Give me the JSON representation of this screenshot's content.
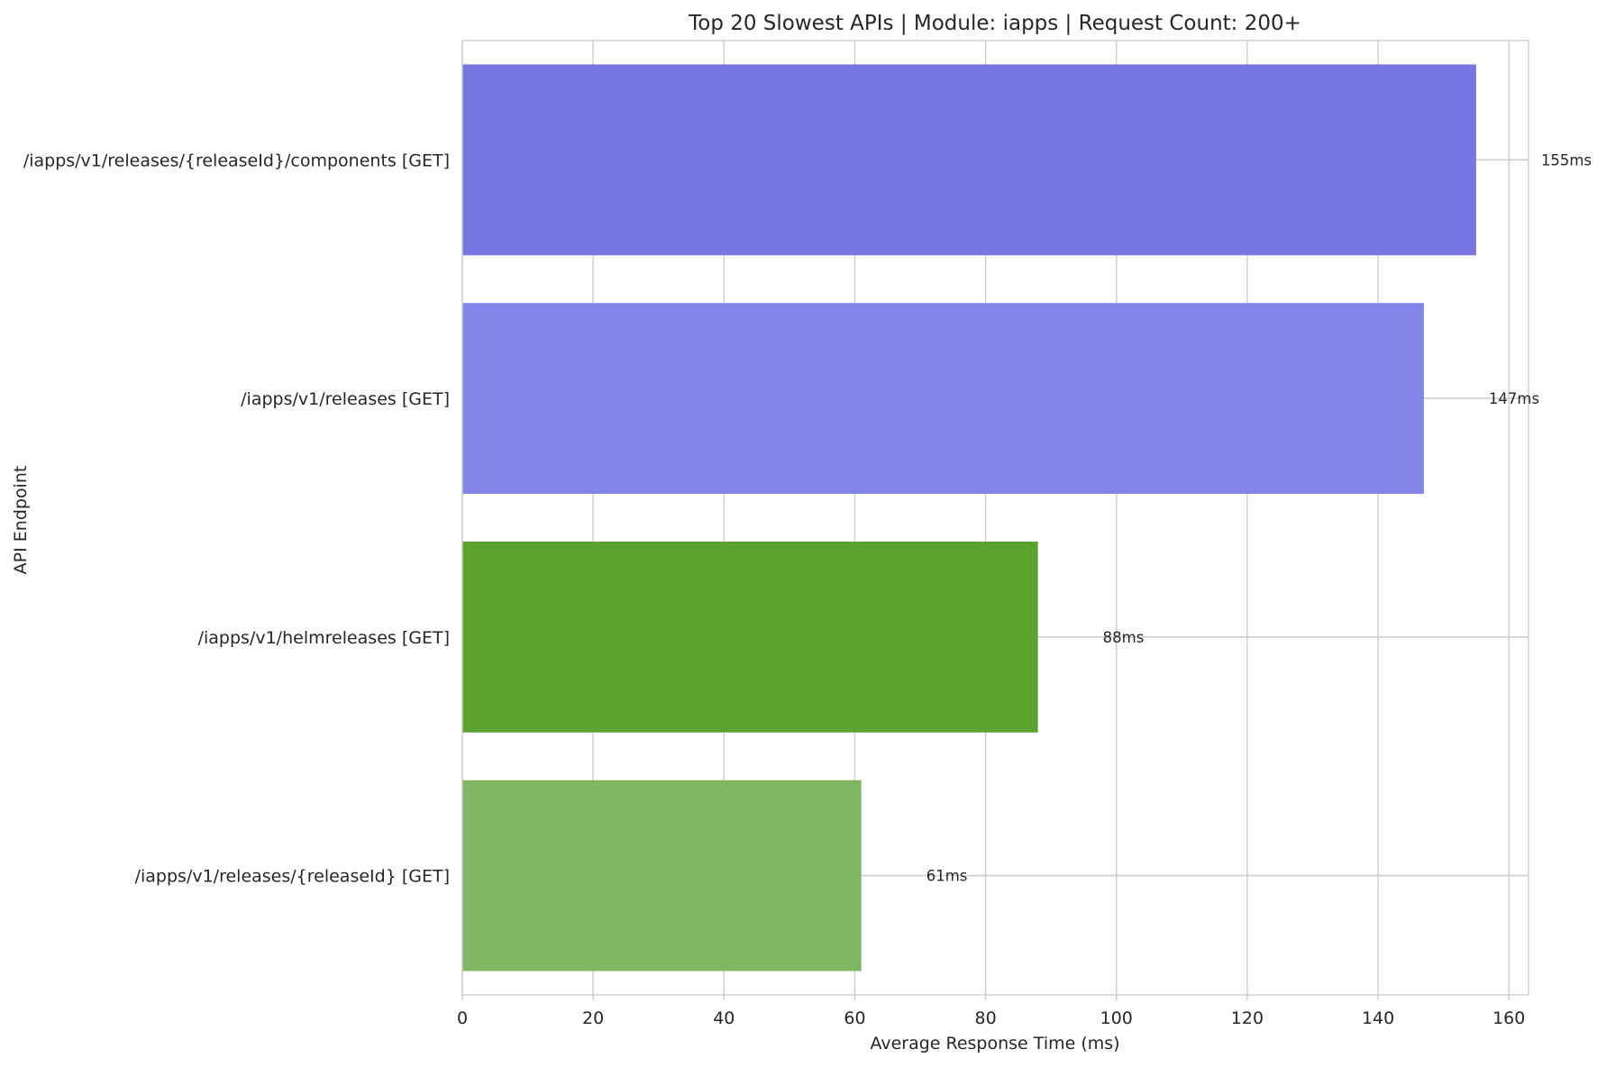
{
  "chart_data": {
    "type": "bar",
    "orientation": "horizontal",
    "title": "Top 20 Slowest APIs | Module: iapps | Request Count: 200+",
    "xlabel": "Average Response Time (ms)",
    "ylabel": "API Endpoint",
    "xlim": [
      0,
      163
    ],
    "xticks": [
      0,
      20,
      40,
      60,
      80,
      100,
      120,
      140,
      160
    ],
    "grid": true,
    "categories": [
      "/iapps/v1/releases/{releaseId}/components [GET]",
      "/iapps/v1/releases [GET]",
      "/iapps/v1/helmreleases [GET]",
      "/iapps/v1/releases/{releaseId} [GET]"
    ],
    "values": [
      155,
      147,
      88,
      61
    ],
    "value_labels": [
      "155ms",
      "147ms",
      "88ms",
      "61ms"
    ],
    "colors": [
      "#7876e3",
      "#8385e9",
      "#5ca22f",
      "#80b662"
    ]
  }
}
